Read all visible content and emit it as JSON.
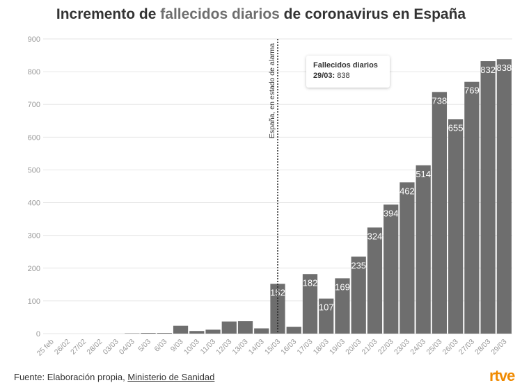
{
  "title": {
    "pre": "Incremento de ",
    "highlight": "fallecidos diarios",
    "post": " de coronavirus en España"
  },
  "source": {
    "pre": "Fuente: Elaboración propia, ",
    "link": "Ministerio de Sanidad"
  },
  "logo": "rtve",
  "tooltip": {
    "series": "Fallecidos diarios",
    "date": "29/03:",
    "value": "838"
  },
  "chart_data": {
    "type": "bar",
    "title": "Incremento de fallecidos diarios de coronavirus en España",
    "xlabel": "",
    "ylabel": "",
    "ylim": [
      0,
      900
    ],
    "yticks": [
      0,
      100,
      200,
      300,
      400,
      500,
      600,
      700,
      800,
      900
    ],
    "grid": true,
    "bar_color": "#6e6e6e",
    "categories": [
      "25 feb",
      "26/02",
      "27/02",
      "28/02",
      "03/03",
      "04/03",
      "5/03",
      "6/03",
      "9/03",
      "10/03",
      "11/03",
      "12/03",
      "13/03",
      "14/03",
      "15/03",
      "16/03",
      "17/03",
      "18/03",
      "19/03",
      "20/03",
      "21/03",
      "22/03",
      "23/03",
      "24/03",
      "25/03",
      "26/03",
      "27/03",
      "28/03",
      "29/03"
    ],
    "values": [
      0,
      0,
      0,
      0,
      0,
      1,
      2,
      2,
      24,
      8,
      12,
      37,
      38,
      16,
      152,
      21,
      182,
      107,
      169,
      235,
      324,
      394,
      462,
      514,
      738,
      655,
      769,
      832,
      838
    ],
    "labeled_min": 100,
    "annotation": {
      "category": "15/03",
      "text": "España, en estado de alarma"
    }
  }
}
